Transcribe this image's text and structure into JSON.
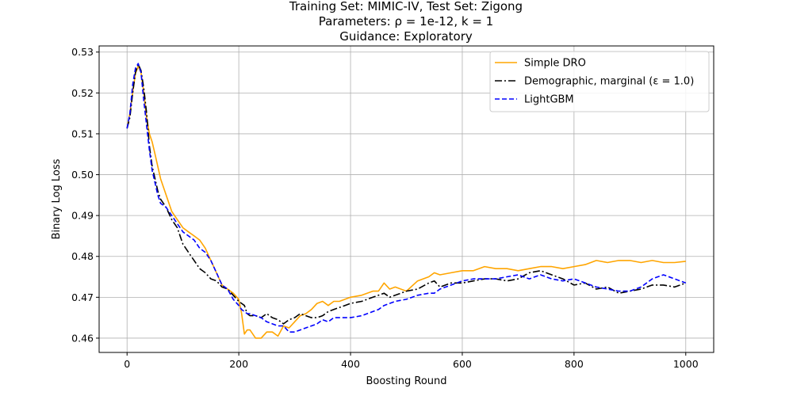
{
  "chart_data": {
    "type": "line",
    "title_lines": [
      "Training Set: MIMIC-IV, Test Set: Zigong",
      "Parameters: ρ = 1e-12, k = 1",
      "Guidance: Exploratory"
    ],
    "xlabel": "Boosting Round",
    "ylabel": "Binary Log Loss",
    "xlim": [
      -50,
      1050
    ],
    "ylim": [
      0.4565,
      0.5315
    ],
    "xticks": [
      0,
      200,
      400,
      600,
      800,
      1000
    ],
    "xtick_labels": [
      "0",
      "200",
      "400",
      "600",
      "800",
      "1000"
    ],
    "yticks": [
      0.46,
      0.47,
      0.48,
      0.49,
      0.5,
      0.51,
      0.52,
      0.53
    ],
    "ytick_labels": [
      "0.46",
      "0.47",
      "0.48",
      "0.49",
      "0.50",
      "0.51",
      "0.52",
      "0.53"
    ],
    "grid": true,
    "legend_position": "top-right",
    "series": [
      {
        "name": "Simple DRO",
        "color": "#FFA500",
        "style": "solid",
        "x": [
          0,
          5,
          10,
          15,
          20,
          25,
          30,
          35,
          40,
          45,
          50,
          55,
          60,
          70,
          80,
          90,
          100,
          110,
          120,
          130,
          140,
          150,
          160,
          170,
          180,
          190,
          200,
          205,
          210,
          215,
          220,
          230,
          240,
          250,
          260,
          270,
          280,
          290,
          300,
          310,
          320,
          330,
          340,
          350,
          360,
          370,
          380,
          390,
          400,
          420,
          440,
          450,
          460,
          470,
          480,
          500,
          520,
          540,
          550,
          560,
          580,
          600,
          620,
          640,
          660,
          680,
          700,
          720,
          740,
          760,
          780,
          800,
          820,
          840,
          860,
          880,
          900,
          920,
          940,
          960,
          980,
          1000
        ],
        "y": [
          0.5113,
          0.515,
          0.52,
          0.5248,
          0.5265,
          0.525,
          0.52,
          0.514,
          0.51,
          0.508,
          0.505,
          0.502,
          0.499,
          0.495,
          0.491,
          0.489,
          0.487,
          0.486,
          0.485,
          0.484,
          0.482,
          0.479,
          0.476,
          0.473,
          0.472,
          0.471,
          0.4695,
          0.466,
          0.461,
          0.462,
          0.462,
          0.46,
          0.46,
          0.4615,
          0.4615,
          0.4605,
          0.463,
          0.4625,
          0.464,
          0.4655,
          0.466,
          0.467,
          0.4685,
          0.469,
          0.468,
          0.469,
          0.469,
          0.4695,
          0.47,
          0.4705,
          0.4715,
          0.4715,
          0.4735,
          0.472,
          0.4725,
          0.4715,
          0.474,
          0.475,
          0.476,
          0.4755,
          0.476,
          0.4765,
          0.4765,
          0.4775,
          0.477,
          0.477,
          0.4765,
          0.477,
          0.4775,
          0.4775,
          0.477,
          0.4775,
          0.478,
          0.479,
          0.4785,
          0.479,
          0.479,
          0.4785,
          0.479,
          0.4785,
          0.4785,
          0.4788
        ]
      },
      {
        "name": "Demographic, marginal (ε = 1.0)",
        "color": "#000000",
        "style": "dashdot",
        "x": [
          0,
          5,
          10,
          15,
          20,
          25,
          30,
          35,
          40,
          45,
          50,
          55,
          60,
          70,
          80,
          90,
          100,
          110,
          120,
          130,
          140,
          150,
          160,
          170,
          180,
          190,
          200,
          205,
          210,
          215,
          220,
          230,
          240,
          250,
          260,
          270,
          280,
          290,
          300,
          310,
          320,
          330,
          340,
          350,
          360,
          370,
          380,
          390,
          400,
          420,
          440,
          450,
          460,
          470,
          480,
          500,
          520,
          540,
          550,
          560,
          580,
          600,
          620,
          640,
          660,
          680,
          700,
          720,
          740,
          760,
          780,
          800,
          820,
          840,
          860,
          880,
          900,
          920,
          940,
          960,
          980,
          1000
        ],
        "y": [
          0.5113,
          0.514,
          0.52,
          0.525,
          0.527,
          0.5255,
          0.521,
          0.515,
          0.507,
          0.502,
          0.499,
          0.496,
          0.494,
          0.492,
          0.489,
          0.487,
          0.483,
          0.481,
          0.479,
          0.477,
          0.476,
          0.4745,
          0.474,
          0.4725,
          0.472,
          0.4705,
          0.469,
          0.4685,
          0.468,
          0.466,
          0.4655,
          0.4655,
          0.465,
          0.466,
          0.465,
          0.4645,
          0.4635,
          0.4645,
          0.465,
          0.466,
          0.4655,
          0.465,
          0.465,
          0.4655,
          0.4665,
          0.467,
          0.4675,
          0.468,
          0.4685,
          0.469,
          0.47,
          0.4705,
          0.471,
          0.47,
          0.4705,
          0.4715,
          0.472,
          0.4735,
          0.474,
          0.4725,
          0.4735,
          0.4735,
          0.474,
          0.4745,
          0.4745,
          0.474,
          0.4745,
          0.476,
          0.4765,
          0.4755,
          0.4745,
          0.473,
          0.4735,
          0.472,
          0.4725,
          0.471,
          0.4715,
          0.472,
          0.473,
          0.473,
          0.4725,
          0.4735
        ]
      },
      {
        "name": "LightGBM",
        "color": "#0000FF",
        "style": "dashed",
        "x": [
          0,
          5,
          10,
          15,
          20,
          25,
          30,
          35,
          40,
          45,
          50,
          55,
          60,
          70,
          80,
          90,
          100,
          110,
          120,
          130,
          140,
          150,
          160,
          170,
          180,
          190,
          200,
          205,
          210,
          215,
          220,
          230,
          240,
          250,
          260,
          270,
          280,
          290,
          300,
          310,
          320,
          330,
          340,
          350,
          360,
          370,
          380,
          390,
          400,
          420,
          440,
          450,
          460,
          470,
          480,
          500,
          520,
          540,
          550,
          560,
          580,
          600,
          620,
          640,
          660,
          680,
          700,
          720,
          740,
          760,
          780,
          800,
          820,
          840,
          860,
          880,
          900,
          920,
          940,
          960,
          980,
          1000
        ],
        "y": [
          0.5113,
          0.515,
          0.522,
          0.526,
          0.5272,
          0.525,
          0.518,
          0.512,
          0.506,
          0.501,
          0.498,
          0.495,
          0.493,
          0.492,
          0.49,
          0.488,
          0.486,
          0.485,
          0.484,
          0.482,
          0.481,
          0.479,
          0.476,
          0.473,
          0.472,
          0.4695,
          0.468,
          0.467,
          0.4665,
          0.466,
          0.466,
          0.4655,
          0.465,
          0.464,
          0.4635,
          0.463,
          0.463,
          0.4615,
          0.4615,
          0.462,
          0.4625,
          0.463,
          0.4635,
          0.4645,
          0.464,
          0.465,
          0.465,
          0.465,
          0.465,
          0.4655,
          0.4665,
          0.467,
          0.468,
          0.4685,
          0.469,
          0.4695,
          0.4705,
          0.471,
          0.471,
          0.472,
          0.473,
          0.474,
          0.4745,
          0.4745,
          0.4745,
          0.475,
          0.4755,
          0.4745,
          0.4755,
          0.4745,
          0.474,
          0.4745,
          0.4735,
          0.4725,
          0.472,
          0.4715,
          0.4715,
          0.4725,
          0.4745,
          0.4755,
          0.4745,
          0.4735
        ]
      }
    ]
  }
}
